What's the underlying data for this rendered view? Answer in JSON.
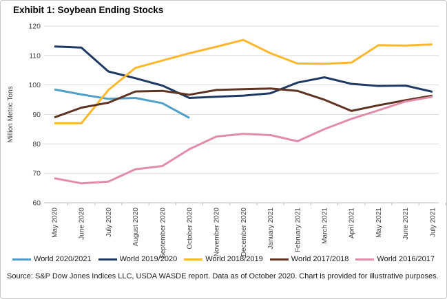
{
  "chart_data": {
    "type": "line",
    "title": "Exhibit 1: Soybean Ending Stocks",
    "xlabel": "",
    "ylabel": "Million Metric Tons",
    "ylim": [
      60,
      120
    ],
    "ytick_step": 10,
    "grid": "horizontal-light-gray",
    "legend_position": "bottom",
    "categories": [
      "May 2020",
      "June 2020",
      "July 2020",
      "August 2020",
      "September 2020",
      "October 2020",
      "November 2020",
      "December 2020",
      "January 2021",
      "February 2021",
      "March 2021",
      "April 2021",
      "May 2021",
      "June 2021",
      "July 2021"
    ],
    "series": [
      {
        "name": "World 2020/2021",
        "color": "#4E9FC9",
        "values": [
          98.5,
          96.8,
          95.3,
          95.6,
          93.8,
          88.8,
          null,
          null,
          null,
          null,
          null,
          null,
          null,
          null,
          null
        ]
      },
      {
        "name": "World 2019/2020",
        "color": "#1E3A62",
        "values": [
          113.1,
          112.7,
          104.6,
          102.3,
          99.8,
          95.6,
          96.0,
          96.4,
          97.2,
          100.8,
          102.6,
          100.4,
          99.7,
          99.8,
          97.7
        ]
      },
      {
        "name": "World 2018/2019",
        "color": "#FDB72A",
        "values": [
          87.0,
          87.0,
          98.3,
          105.8,
          108.3,
          110.8,
          113.0,
          115.3,
          110.8,
          107.3,
          107.2,
          107.6,
          113.5,
          113.4,
          113.8
        ]
      },
      {
        "name": "World 2017/2018",
        "color": "#5E3322",
        "values": [
          89.0,
          92.3,
          94.0,
          97.8,
          98.0,
          96.7,
          98.3,
          98.6,
          98.8,
          98.0,
          95.0,
          91.2,
          93.1,
          94.8,
          96.4
        ]
      },
      {
        "name": "World 2016/2017",
        "color": "#E18CAB",
        "values": [
          68.3,
          66.6,
          67.2,
          71.4,
          72.5,
          78.2,
          82.5,
          83.4,
          83.0,
          80.9,
          85.0,
          88.5,
          91.4,
          94.4,
          96.0
        ]
      }
    ],
    "source_note": "Source: S&P Dow Jones Indices LLC, USDA WASDE report. Data as of October 2020. Chart is provided for illustrative purposes."
  },
  "style": {
    "gridline_color": "#D9D9D9",
    "axis_color": "#BFBFBF",
    "tick_label_color": "#404040",
    "title_color": "#000000"
  }
}
